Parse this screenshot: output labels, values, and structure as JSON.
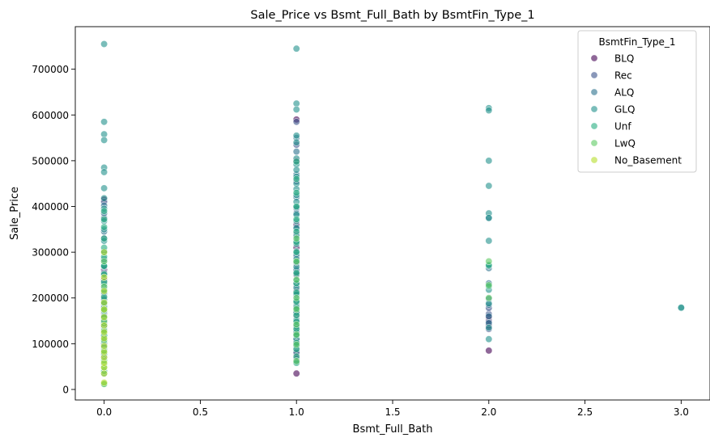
{
  "chart_data": {
    "type": "scatter",
    "title": "Sale_Price vs Bsmt_Full_Bath by BsmtFin_Type_1",
    "xlabel": "Bsmt_Full_Bath",
    "ylabel": "Sale_Price",
    "xlim": [
      -0.15,
      3.15
    ],
    "ylim": [
      -23000,
      793000
    ],
    "x_ticks": [
      0.0,
      0.5,
      1.0,
      1.5,
      2.0,
      2.5,
      3.0
    ],
    "x_tick_labels": [
      "0.0",
      "0.5",
      "1.0",
      "1.5",
      "2.0",
      "2.5",
      "3.0"
    ],
    "y_ticks": [
      0,
      100000,
      200000,
      300000,
      400000,
      500000,
      600000,
      700000
    ],
    "y_tick_labels": [
      "0",
      "100000",
      "200000",
      "300000",
      "400000",
      "500000",
      "600000",
      "700000"
    ],
    "grid": false,
    "legend": {
      "title": "BsmtFin_Type_1",
      "placement": "top-right"
    },
    "series": [
      {
        "name": "BLQ",
        "color": "#440154",
        "points": [
          [
            0,
            70000
          ],
          [
            0,
            88000
          ],
          [
            0,
            110000
          ],
          [
            0,
            128000
          ],
          [
            0,
            142000
          ],
          [
            0,
            152000
          ],
          [
            0,
            168000
          ],
          [
            0,
            185000
          ],
          [
            0,
            205000
          ],
          [
            0,
            240000
          ],
          [
            0,
            262000
          ],
          [
            0,
            415000
          ],
          [
            1,
            35000
          ],
          [
            1,
            78000
          ],
          [
            1,
            105000
          ],
          [
            1,
            122000
          ],
          [
            1,
            138000
          ],
          [
            1,
            160000
          ],
          [
            1,
            180000
          ],
          [
            1,
            215000
          ],
          [
            1,
            250000
          ],
          [
            1,
            275000
          ],
          [
            1,
            310000
          ],
          [
            1,
            360000
          ],
          [
            1,
            500000
          ],
          [
            1,
            590000
          ],
          [
            2,
            85000
          ],
          [
            2,
            140000
          ],
          [
            2,
            152000
          ],
          [
            2,
            158000
          ]
        ]
      },
      {
        "name": "Rec",
        "color": "#3b528b",
        "points": [
          [
            0,
            75000
          ],
          [
            0,
            95000
          ],
          [
            0,
            118000
          ],
          [
            0,
            135000
          ],
          [
            0,
            148000
          ],
          [
            0,
            162000
          ],
          [
            0,
            178000
          ],
          [
            0,
            195000
          ],
          [
            0,
            222000
          ],
          [
            0,
            255000
          ],
          [
            0,
            282000
          ],
          [
            0,
            330000
          ],
          [
            0,
            375000
          ],
          [
            0,
            410000
          ],
          [
            1,
            68000
          ],
          [
            1,
            90000
          ],
          [
            1,
            112000
          ],
          [
            1,
            130000
          ],
          [
            1,
            145000
          ],
          [
            1,
            165000
          ],
          [
            1,
            188000
          ],
          [
            1,
            205000
          ],
          [
            1,
            228000
          ],
          [
            1,
            258000
          ],
          [
            1,
            290000
          ],
          [
            1,
            340000
          ],
          [
            1,
            395000
          ],
          [
            1,
            455000
          ],
          [
            1,
            535000
          ],
          [
            1,
            585000
          ],
          [
            2,
            132000
          ],
          [
            2,
            148000
          ],
          [
            2,
            165000
          ],
          [
            2,
            178000
          ]
        ]
      },
      {
        "name": "ALQ",
        "color": "#2c728e",
        "points": [
          [
            0,
            80000
          ],
          [
            0,
            100000
          ],
          [
            0,
            122000
          ],
          [
            0,
            140000
          ],
          [
            0,
            155000
          ],
          [
            0,
            172000
          ],
          [
            0,
            190000
          ],
          [
            0,
            210000
          ],
          [
            0,
            235000
          ],
          [
            0,
            268000
          ],
          [
            0,
            300000
          ],
          [
            0,
            345000
          ],
          [
            0,
            385000
          ],
          [
            0,
            402000
          ],
          [
            1,
            60000
          ],
          [
            1,
            82000
          ],
          [
            1,
            100000
          ],
          [
            1,
            118000
          ],
          [
            1,
            135000
          ],
          [
            1,
            150000
          ],
          [
            1,
            170000
          ],
          [
            1,
            190000
          ],
          [
            1,
            210000
          ],
          [
            1,
            232000
          ],
          [
            1,
            262000
          ],
          [
            1,
            295000
          ],
          [
            1,
            325000
          ],
          [
            1,
            355000
          ],
          [
            1,
            385000
          ],
          [
            1,
            420000
          ],
          [
            1,
            470000
          ],
          [
            1,
            520000
          ],
          [
            1,
            550000
          ],
          [
            2,
            145000
          ],
          [
            2,
            160000
          ],
          [
            2,
            185000
          ],
          [
            2,
            198000
          ],
          [
            2,
            232000
          ],
          [
            2,
            265000
          ],
          [
            2,
            375000
          ]
        ]
      },
      {
        "name": "GLQ",
        "color": "#21918c",
        "points": [
          [
            0,
            755000
          ],
          [
            0,
            585000
          ],
          [
            0,
            558000
          ],
          [
            0,
            545000
          ],
          [
            0,
            485000
          ],
          [
            0,
            475000
          ],
          [
            0,
            440000
          ],
          [
            0,
            418000
          ],
          [
            0,
            395000
          ],
          [
            0,
            368000
          ],
          [
            0,
            350000
          ],
          [
            0,
            325000
          ],
          [
            0,
            302000
          ],
          [
            0,
            285000
          ],
          [
            0,
            270000
          ],
          [
            0,
            250000
          ],
          [
            0,
            230000
          ],
          [
            0,
            212000
          ],
          [
            0,
            198000
          ],
          [
            0,
            180000
          ],
          [
            0,
            160000
          ],
          [
            0,
            138000
          ],
          [
            0,
            115000
          ],
          [
            0,
            85000
          ],
          [
            0,
            35000
          ],
          [
            1,
            745000
          ],
          [
            1,
            625000
          ],
          [
            1,
            612000
          ],
          [
            1,
            555000
          ],
          [
            1,
            540000
          ],
          [
            1,
            505000
          ],
          [
            1,
            492000
          ],
          [
            1,
            480000
          ],
          [
            1,
            465000
          ],
          [
            1,
            450000
          ],
          [
            1,
            438000
          ],
          [
            1,
            425000
          ],
          [
            1,
            410000
          ],
          [
            1,
            398000
          ],
          [
            1,
            382000
          ],
          [
            1,
            368000
          ],
          [
            1,
            352000
          ],
          [
            1,
            335000
          ],
          [
            1,
            318000
          ],
          [
            1,
            302000
          ],
          [
            1,
            285000
          ],
          [
            1,
            268000
          ],
          [
            1,
            252000
          ],
          [
            1,
            238000
          ],
          [
            1,
            222000
          ],
          [
            1,
            208000
          ],
          [
            1,
            195000
          ],
          [
            1,
            182000
          ],
          [
            1,
            168000
          ],
          [
            1,
            152000
          ],
          [
            1,
            138000
          ],
          [
            1,
            125000
          ],
          [
            1,
            110000
          ],
          [
            1,
            95000
          ],
          [
            2,
            615000
          ],
          [
            2,
            610000
          ],
          [
            2,
            500000
          ],
          [
            2,
            445000
          ],
          [
            2,
            385000
          ],
          [
            2,
            375000
          ],
          [
            2,
            325000
          ],
          [
            2,
            270000
          ],
          [
            2,
            218000
          ],
          [
            2,
            188000
          ],
          [
            2,
            135000
          ],
          [
            2,
            110000
          ],
          [
            3,
            178000
          ],
          [
            3,
            179000
          ]
        ]
      },
      {
        "name": "Unf",
        "color": "#27ad81",
        "points": [
          [
            0,
            12000
          ],
          [
            0,
            40000
          ],
          [
            0,
            55000
          ],
          [
            0,
            65000
          ],
          [
            0,
            78000
          ],
          [
            0,
            92000
          ],
          [
            0,
            105000
          ],
          [
            0,
            118000
          ],
          [
            0,
            130000
          ],
          [
            0,
            145000
          ],
          [
            0,
            158000
          ],
          [
            0,
            172000
          ],
          [
            0,
            188000
          ],
          [
            0,
            202000
          ],
          [
            0,
            218000
          ],
          [
            0,
            235000
          ],
          [
            0,
            252000
          ],
          [
            0,
            270000
          ],
          [
            0,
            290000
          ],
          [
            0,
            310000
          ],
          [
            0,
            330000
          ],
          [
            0,
            355000
          ],
          [
            0,
            372000
          ],
          [
            0,
            390000
          ],
          [
            1,
            58000
          ],
          [
            1,
            72000
          ],
          [
            1,
            88000
          ],
          [
            1,
            102000
          ],
          [
            1,
            118000
          ],
          [
            1,
            132000
          ],
          [
            1,
            148000
          ],
          [
            1,
            162000
          ],
          [
            1,
            178000
          ],
          [
            1,
            192000
          ],
          [
            1,
            212000
          ],
          [
            1,
            232000
          ],
          [
            1,
            255000
          ],
          [
            1,
            278000
          ],
          [
            1,
            300000
          ],
          [
            1,
            322000
          ],
          [
            1,
            345000
          ],
          [
            1,
            372000
          ],
          [
            1,
            400000
          ],
          [
            1,
            430000
          ],
          [
            1,
            460000
          ],
          [
            1,
            498000
          ],
          [
            2,
            225000
          ],
          [
            2,
            272000
          ]
        ]
      },
      {
        "name": "LwQ",
        "color": "#5ec962",
        "points": [
          [
            0,
            12000
          ],
          [
            0,
            48000
          ],
          [
            0,
            62000
          ],
          [
            0,
            85000
          ],
          [
            0,
            108000
          ],
          [
            0,
            128000
          ],
          [
            0,
            150000
          ],
          [
            0,
            175000
          ],
          [
            0,
            225000
          ],
          [
            0,
            280000
          ],
          [
            1,
            62000
          ],
          [
            1,
            98000
          ],
          [
            1,
            120000
          ],
          [
            1,
            142000
          ],
          [
            1,
            175000
          ],
          [
            1,
            200000
          ],
          [
            1,
            240000
          ],
          [
            1,
            280000
          ],
          [
            1,
            330000
          ],
          [
            2,
            200000
          ],
          [
            2,
            228000
          ],
          [
            2,
            280000
          ]
        ]
      },
      {
        "name": "No_Basement",
        "color": "#b5de2b",
        "points": [
          [
            0,
            15000
          ],
          [
            0,
            35000
          ],
          [
            0,
            48000
          ],
          [
            0,
            58000
          ],
          [
            0,
            70000
          ],
          [
            0,
            82000
          ],
          [
            0,
            95000
          ],
          [
            0,
            112000
          ],
          [
            0,
            125000
          ],
          [
            0,
            140000
          ],
          [
            0,
            158000
          ],
          [
            0,
            175000
          ],
          [
            0,
            190000
          ],
          [
            0,
            215000
          ],
          [
            0,
            245000
          ],
          [
            0,
            300000
          ]
        ]
      }
    ]
  }
}
